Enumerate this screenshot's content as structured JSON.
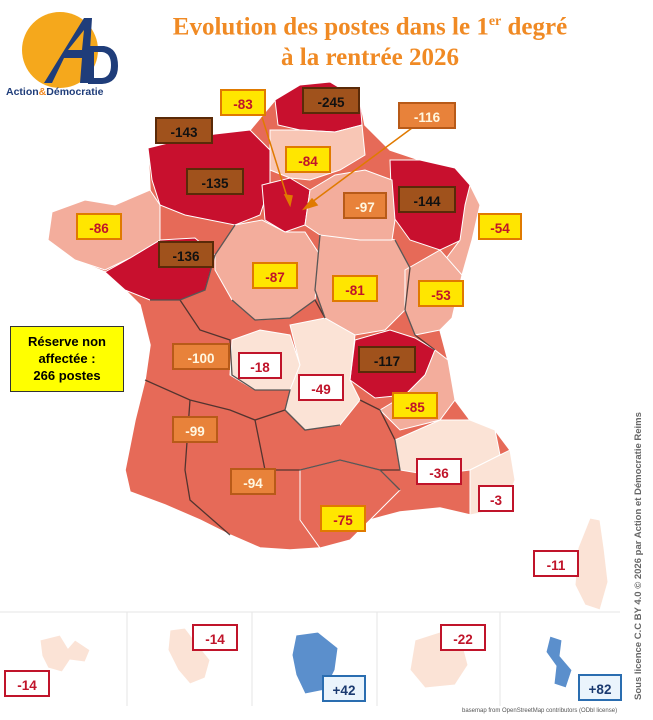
{
  "title": {
    "line1_a": "Evolution des postes dans le 1",
    "line1_sup": "er",
    "line1_b": " degré",
    "line2": "à la rentrée 2026"
  },
  "logo": {
    "monogram": "A",
    "monogram2": "D",
    "text_a": "Action",
    "text_amp": "&",
    "text_b": "Démocratie"
  },
  "reserve": {
    "line1": "Réserve non",
    "line2": "affectée :",
    "line3": "266 postes"
  },
  "colors": {
    "darkred": "#c8102e",
    "red": "#e05a4a",
    "salmon": "#ec8f7e",
    "pink": "#f4b9a8",
    "light": "#f9ddd0",
    "overseas_blue": "#5b8fcc",
    "title_orange": "#f08a24"
  },
  "labels": [
    {
      "id": "manche",
      "value": "-143",
      "style": "brown"
    },
    {
      "id": "somme",
      "value": "-83",
      "style": "yellow"
    },
    {
      "id": "nord",
      "value": "-245",
      "style": "brown"
    },
    {
      "id": "ardennes",
      "value": "-116",
      "style": "orange"
    },
    {
      "id": "aisne",
      "value": "-84",
      "style": "yellow"
    },
    {
      "id": "normandie",
      "value": "-135",
      "style": "brown"
    },
    {
      "id": "marne",
      "value": "-97",
      "style": "orange"
    },
    {
      "id": "lorraine",
      "value": "-144",
      "style": "brown"
    },
    {
      "id": "bretagne",
      "value": "-86",
      "style": "yellow"
    },
    {
      "id": "alsace",
      "value": "-54",
      "style": "yellow"
    },
    {
      "id": "loire",
      "value": "-136",
      "style": "brown"
    },
    {
      "id": "centre",
      "value": "-87",
      "style": "yellow"
    },
    {
      "id": "bourgogne",
      "value": "-81",
      "style": "yellow"
    },
    {
      "id": "franche",
      "value": "-53",
      "style": "yellow"
    },
    {
      "id": "poitou",
      "value": "-100",
      "style": "orange"
    },
    {
      "id": "limousin",
      "value": "-18",
      "style": "white"
    },
    {
      "id": "auvergne",
      "value": "-49",
      "style": "white"
    },
    {
      "id": "lyon",
      "value": "-117",
      "style": "brown"
    },
    {
      "id": "alpes",
      "value": "-85",
      "style": "yellow"
    },
    {
      "id": "aquitaine",
      "value": "-99",
      "style": "orange"
    },
    {
      "id": "provence",
      "value": "-36",
      "style": "white"
    },
    {
      "id": "midi",
      "value": "-94",
      "style": "orange"
    },
    {
      "id": "nice",
      "value": "-3",
      "style": "white"
    },
    {
      "id": "languedoc",
      "value": "-75",
      "style": "yellow"
    },
    {
      "id": "corse",
      "value": "-11",
      "style": "white"
    },
    {
      "id": "guadeloupe",
      "value": "-14",
      "style": "white"
    },
    {
      "id": "martinique",
      "value": "-14",
      "style": "white"
    },
    {
      "id": "guyane",
      "value": "+42",
      "style": "blue"
    },
    {
      "id": "reunion",
      "value": "-22",
      "style": "white"
    },
    {
      "id": "mayotte",
      "value": "+82",
      "style": "blue"
    }
  ],
  "license": "Sous licence C.C BY 4.0 © 2026 par Action et Démocratie Reims",
  "basemap_credit": "basemap from OpenStreetMap contributors (ODbl license)"
}
